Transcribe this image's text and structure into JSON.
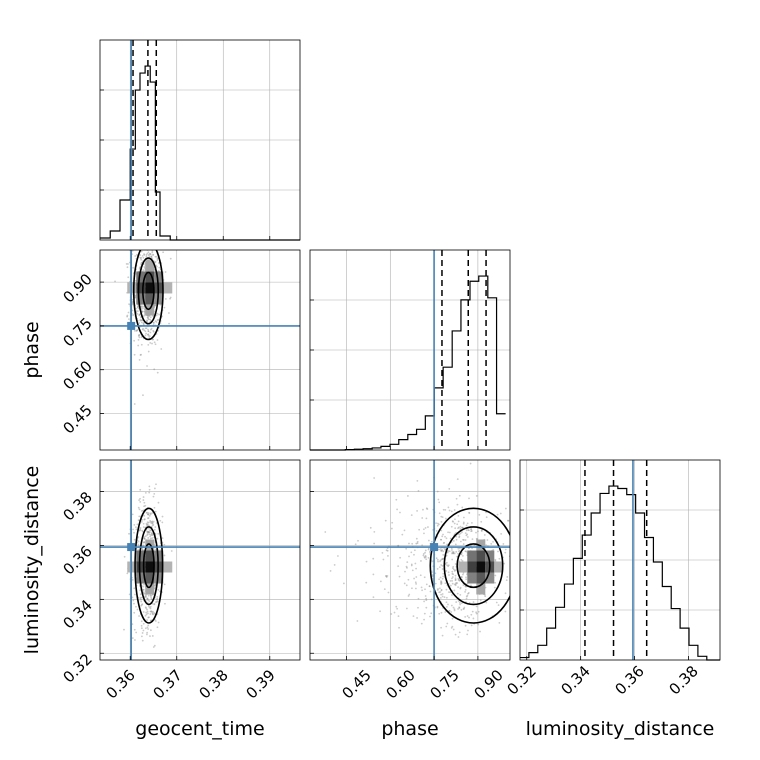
{
  "chart_data": {
    "type": "corner",
    "colors": {
      "truth": "#4682b4",
      "hist": "#000000",
      "scatter": "#8c8c8c"
    },
    "grid": true,
    "parameters": [
      {
        "name": "geocent_time",
        "xlabel": "geocent_time",
        "ylabel": "",
        "range": [
          0.3535,
          0.3965
        ],
        "ticks": [
          0.36,
          0.37,
          0.38,
          0.39
        ],
        "tick_labels": [
          "0.36",
          "0.37",
          "0.38",
          "0.39"
        ],
        "truth": 0.3602,
        "quantiles": [
          0.3606,
          0.3638,
          0.3656
        ],
        "hist_edges": [
          0.3535,
          0.3557,
          0.3578,
          0.36,
          0.3611,
          0.3621,
          0.3632,
          0.3643,
          0.3654,
          0.3664,
          0.3686,
          0.3965
        ],
        "hist_counts": [
          0.02,
          0.09,
          0.4,
          0.91,
          1.5,
          1.67,
          1.74,
          1.58,
          0.48,
          0.04,
          0
        ]
      },
      {
        "name": "phase",
        "xlabel": "phase",
        "ylabel": "phase",
        "range": [
          0.325,
          1.01
        ],
        "ticks": [
          0.45,
          0.6,
          0.75,
          0.9
        ],
        "tick_labels": [
          "0.45",
          "0.60",
          "0.75",
          "0.90"
        ],
        "truth": 0.75,
        "quantiles": [
          0.777,
          0.867,
          0.928
        ],
        "hist_edges": [
          0.325,
          0.355,
          0.385,
          0.416,
          0.446,
          0.477,
          0.507,
          0.538,
          0.568,
          0.599,
          0.629,
          0.66,
          0.69,
          0.72,
          0.751,
          0.781,
          0.812,
          0.842,
          0.873,
          0.903,
          0.934,
          0.964,
          0.995
        ],
        "hist_counts": [
          0,
          0,
          0,
          0,
          0.004,
          0.008,
          0.012,
          0.02,
          0.035,
          0.055,
          0.1,
          0.15,
          0.2,
          0.33,
          0.6,
          0.8,
          1.15,
          1.45,
          1.63,
          1.68,
          1.47,
          0.35
        ]
      },
      {
        "name": "luminosity_distance",
        "xlabel": "luminosity_distance",
        "ylabel": "luminosity_distance",
        "range": [
          0.3175,
          0.3917
        ],
        "ticks": [
          0.32,
          0.34,
          0.36,
          0.38
        ],
        "tick_labels": [
          "0.32",
          "0.34",
          "0.36",
          "0.38"
        ],
        "truth": 0.3594,
        "quantiles": [
          0.3416,
          0.3522,
          0.3645
        ],
        "hist_edges": [
          0.3175,
          0.3208,
          0.3241,
          0.3274,
          0.3307,
          0.334,
          0.3373,
          0.3406,
          0.3439,
          0.3472,
          0.3505,
          0.3538,
          0.3571,
          0.3604,
          0.3637,
          0.367,
          0.3703,
          0.3736,
          0.3769,
          0.3802,
          0.3835,
          0.3868,
          0.3917
        ],
        "hist_counts": [
          0.02,
          0.06,
          0.12,
          0.26,
          0.43,
          0.62,
          0.83,
          1.02,
          1.2,
          1.36,
          1.42,
          1.4,
          1.35,
          1.2,
          1.0,
          0.8,
          0.6,
          0.42,
          0.26,
          0.12,
          0.03,
          0
        ]
      }
    ],
    "panels": [
      {
        "row": 1,
        "col": 0,
        "x": "geocent_time",
        "y": "phase",
        "scatter_center": [
          0.3636,
          0.86
        ],
        "scatter_spread": [
          0.0017,
          0.09
        ],
        "density_peak": [
          0.3642,
          0.88
        ]
      },
      {
        "row": 2,
        "col": 0,
        "x": "geocent_time",
        "y": "luminosity_distance",
        "scatter_center": [
          0.3638,
          0.353
        ],
        "scatter_spread": [
          0.0016,
          0.0115
        ],
        "density_peak": [
          0.3642,
          0.352
        ]
      },
      {
        "row": 2,
        "col": 1,
        "x": "phase",
        "y": "luminosity_distance",
        "scatter_center": [
          0.86,
          0.353
        ],
        "scatter_spread": [
          0.08,
          0.0115
        ],
        "density_peak": [
          0.91,
          0.352
        ]
      }
    ]
  }
}
